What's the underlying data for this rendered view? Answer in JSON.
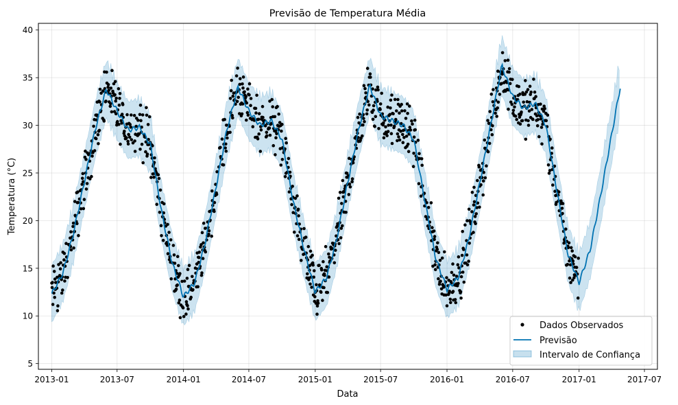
{
  "chart_data": {
    "type": "line",
    "title": "Previsão de Temperatura Média",
    "xlabel": "Data",
    "ylabel": "Temperatura (°C)",
    "x_tick_labels": [
      "2013-01",
      "2013-07",
      "2014-01",
      "2014-07",
      "2015-01",
      "2015-07",
      "2016-01",
      "2016-07",
      "2017-01",
      "2017-07"
    ],
    "x_tick_dates": [
      "2013-01-01",
      "2013-07-01",
      "2014-01-01",
      "2014-07-01",
      "2015-01-01",
      "2015-07-01",
      "2016-01-01",
      "2016-07-01",
      "2017-01-01",
      "2017-07-01"
    ],
    "y_ticks": [
      5,
      10,
      15,
      20,
      25,
      30,
      35,
      40
    ],
    "xlim": [
      "2012-11-25",
      "2017-08-06"
    ],
    "ylim": [
      4.4,
      40.7
    ],
    "grid": true,
    "legend_position": "bottom-right",
    "legend": {
      "observed": "Dados Observados",
      "forecast": "Previsão",
      "interval": "Intervalo de Confiança"
    },
    "colors": {
      "observed": "#000000",
      "forecast": "#0072B2",
      "interval": "#0072B2"
    },
    "series": [
      {
        "name": "Previsão",
        "x": [
          "2013-01-01",
          "2013-02-01",
          "2013-03-01",
          "2013-04-01",
          "2013-05-01",
          "2013-06-01",
          "2013-07-01",
          "2013-08-01",
          "2013-09-01",
          "2013-10-01",
          "2013-11-01",
          "2013-12-01",
          "2014-01-01",
          "2014-02-01",
          "2014-03-01",
          "2014-04-01",
          "2014-05-01",
          "2014-06-01",
          "2014-07-01",
          "2014-08-01",
          "2014-09-01",
          "2014-10-01",
          "2014-11-01",
          "2014-12-01",
          "2015-01-01",
          "2015-02-01",
          "2015-03-01",
          "2015-04-01",
          "2015-05-01",
          "2015-06-01",
          "2015-07-01",
          "2015-08-01",
          "2015-09-01",
          "2015-10-01",
          "2015-11-01",
          "2015-12-01",
          "2016-01-01",
          "2016-02-01",
          "2016-03-01",
          "2016-04-01",
          "2016-05-01",
          "2016-06-01",
          "2016-07-01",
          "2016-08-01",
          "2016-09-01",
          "2016-10-01",
          "2016-11-01",
          "2016-12-01",
          "2017-01-01",
          "2017-02-01",
          "2017-03-01",
          "2017-04-01",
          "2017-04-25"
        ],
        "y": [
          12.3,
          14.5,
          18.5,
          24.0,
          29.5,
          33.8,
          31.5,
          29.5,
          29.8,
          28.0,
          21.0,
          15.5,
          12.0,
          13.5,
          17.5,
          23.5,
          29.5,
          34.0,
          31.5,
          30.0,
          30.5,
          28.5,
          22.0,
          17.0,
          12.5,
          14.0,
          18.0,
          24.0,
          29.5,
          34.2,
          31.0,
          30.5,
          30.0,
          28.5,
          22.0,
          16.0,
          12.8,
          14.0,
          18.0,
          24.0,
          30.0,
          36.3,
          33.0,
          31.8,
          32.3,
          30.0,
          23.0,
          16.5,
          13.5,
          17.0,
          22.5,
          29.0,
          34.0
        ]
      },
      {
        "name": "Intervalo de Confiança",
        "band_width": 3.0
      },
      {
        "name": "Dados Observados",
        "points_per_day": 1,
        "noise_amplitude": 2.2,
        "start": "2013-01-01",
        "end": "2016-12-31"
      }
    ]
  }
}
